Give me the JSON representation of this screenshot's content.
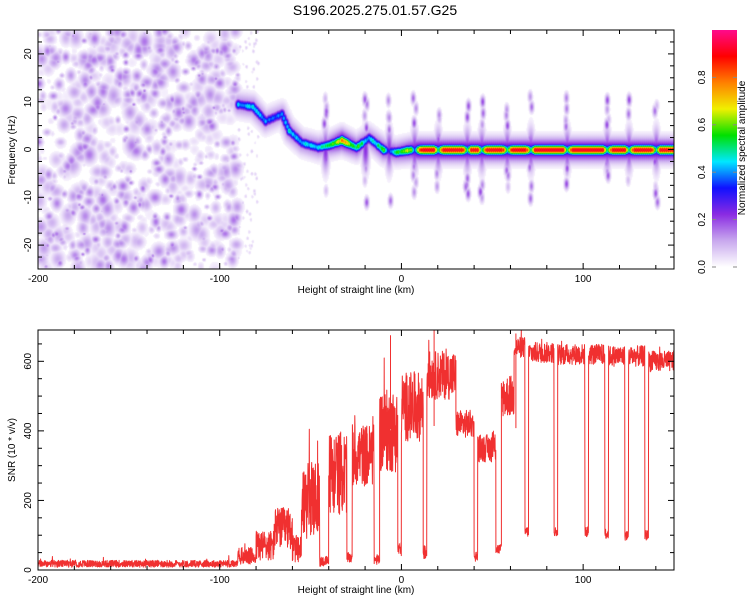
{
  "title": "S196.2025.275.01.57.G25",
  "chart_data": [
    {
      "type": "heatmap",
      "name": "spectrogram",
      "xlabel": "Height of straight line (km)",
      "ylabel": "Frequency (Hz)",
      "xlim": [
        -200,
        150
      ],
      "ylim": [
        -25,
        25
      ],
      "xticks": [
        -200,
        -100,
        0,
        100
      ],
      "xtick_labels": [
        "-200",
        "-100",
        "0",
        "100"
      ],
      "xminor_step": 20,
      "yticks": [
        -20,
        -10,
        0,
        10,
        20
      ],
      "ytick_labels": [
        "-20",
        "-10",
        "0",
        "10",
        "20"
      ],
      "yminor_step": 2.5,
      "colorbar": {
        "label": "Normalized spectral amplitude",
        "range": [
          0,
          1
        ],
        "ticks": [
          0.0,
          0.2,
          0.4,
          0.6,
          0.8
        ],
        "tick_labels": [
          "0.0",
          "0.2",
          "0.4",
          "0.6",
          "0.8"
        ],
        "colors": [
          "#ffffff",
          "#c8a8ee",
          "#8a2be2",
          "#1010ff",
          "#00e8ff",
          "#00e000",
          "#f0f000",
          "#ff8000",
          "#ff0000",
          "#ff0a8c"
        ]
      },
      "noise_region": {
        "x_range": [
          -200,
          -90
        ],
        "level_range": [
          0.02,
          0.16
        ]
      },
      "ridge": [
        {
          "x": -90,
          "f": 9.5,
          "a": 0.45
        },
        {
          "x": -82,
          "f": 9.0,
          "a": 0.48
        },
        {
          "x": -75,
          "f": 6.0,
          "a": 0.42
        },
        {
          "x": -66,
          "f": 7.5,
          "a": 0.4
        },
        {
          "x": -62,
          "f": 4.0,
          "a": 0.5
        },
        {
          "x": -55,
          "f": 1.5,
          "a": 0.46
        },
        {
          "x": -46,
          "f": 0.5,
          "a": 0.5
        },
        {
          "x": -40,
          "f": 1.0,
          "a": 0.55
        },
        {
          "x": -33,
          "f": 2.0,
          "a": 0.8
        },
        {
          "x": -25,
          "f": 0.5,
          "a": 0.6
        },
        {
          "x": -18,
          "f": 2.5,
          "a": 0.45
        },
        {
          "x": -10,
          "f": 0.0,
          "a": 0.6
        },
        {
          "x": -3,
          "f": -0.5,
          "a": 0.55
        },
        {
          "x": 5,
          "f": 0.0,
          "a": 0.7
        },
        {
          "x": 12,
          "f": 0.0,
          "a": 0.95
        },
        {
          "x": 150,
          "f": 0.0,
          "a": 0.95
        }
      ],
      "ridge_gaps_x": [
        -7,
        7,
        20,
        36,
        44,
        58,
        71,
        91,
        113,
        125,
        140
      ],
      "vertical_streaks_x": [
        -42,
        -20,
        -7,
        7,
        20,
        36,
        44,
        58,
        71,
        91,
        113,
        125,
        140
      ]
    },
    {
      "type": "line",
      "name": "snr",
      "xlabel": "Height of straight line (km)",
      "ylabel": "SNR (10 * v/v)",
      "xlim": [
        -200,
        150
      ],
      "ylim": [
        0,
        690
      ],
      "xticks": [
        -200,
        -100,
        0,
        100
      ],
      "xtick_labels": [
        "-200",
        "-100",
        "0",
        "100"
      ],
      "xminor_step": 20,
      "yticks": [
        0,
        200,
        400,
        600
      ],
      "ytick_labels": [
        "0",
        "200",
        "400",
        "600"
      ],
      "yminor_step": 50,
      "color": "#f03030",
      "segments": [
        {
          "x0": -200,
          "x1": -90,
          "level": 18,
          "noise": 10
        },
        {
          "x0": -90,
          "x1": -80,
          "level": 40,
          "noise": 25
        },
        {
          "x0": -80,
          "x1": -70,
          "level": 70,
          "noise": 45
        },
        {
          "x0": -70,
          "x1": -60,
          "level": 120,
          "noise": 60
        },
        {
          "x0": -60,
          "x1": -55,
          "level": 60,
          "noise": 40
        },
        {
          "x0": -55,
          "x1": -45,
          "level": 200,
          "noise": 110
        },
        {
          "x0": -45,
          "x1": -40,
          "level": 25,
          "noise": 15
        },
        {
          "x0": -40,
          "x1": -30,
          "level": 280,
          "noise": 120
        },
        {
          "x0": -30,
          "x1": -27,
          "level": 35,
          "noise": 15
        },
        {
          "x0": -27,
          "x1": -15,
          "level": 330,
          "noise": 90
        },
        {
          "x0": -15,
          "x1": -12,
          "level": 30,
          "noise": 15
        },
        {
          "x0": -12,
          "x1": -2,
          "level": 400,
          "noise": 120
        },
        {
          "x0": -2,
          "x1": 0,
          "level": 60,
          "noise": 20
        },
        {
          "x0": 0,
          "x1": 12,
          "level": 470,
          "noise": 100
        },
        {
          "x0": 12,
          "x1": 14,
          "level": 50,
          "noise": 20
        },
        {
          "x0": 14,
          "x1": 30,
          "level": 560,
          "noise": 70
        },
        {
          "x0": 30,
          "x1": 40,
          "level": 420,
          "noise": 40
        },
        {
          "x0": 40,
          "x1": 42,
          "level": 40,
          "noise": 15
        },
        {
          "x0": 42,
          "x1": 52,
          "level": 350,
          "noise": 40
        },
        {
          "x0": 52,
          "x1": 55,
          "level": 60,
          "noise": 15
        },
        {
          "x0": 55,
          "x1": 62,
          "level": 500,
          "noise": 60
        },
        {
          "x0": 62,
          "x1": 68,
          "level": 640,
          "noise": 30
        },
        {
          "x0": 68,
          "x1": 70,
          "level": 110,
          "noise": 15
        },
        {
          "x0": 70,
          "x1": 84,
          "level": 625,
          "noise": 30
        },
        {
          "x0": 84,
          "x1": 86,
          "level": 110,
          "noise": 15
        },
        {
          "x0": 86,
          "x1": 101,
          "level": 620,
          "noise": 30
        },
        {
          "x0": 101,
          "x1": 103,
          "level": 110,
          "noise": 15
        },
        {
          "x0": 103,
          "x1": 112,
          "level": 620,
          "noise": 30
        },
        {
          "x0": 112,
          "x1": 114,
          "level": 105,
          "noise": 15
        },
        {
          "x0": 114,
          "x1": 123,
          "level": 615,
          "noise": 30
        },
        {
          "x0": 123,
          "x1": 125,
          "level": 100,
          "noise": 15
        },
        {
          "x0": 125,
          "x1": 134,
          "level": 615,
          "noise": 30
        },
        {
          "x0": 134,
          "x1": 136,
          "level": 100,
          "noise": 15
        },
        {
          "x0": 136,
          "x1": 150,
          "level": 600,
          "noise": 30
        }
      ],
      "peaks": [
        {
          "x": -6,
          "y": 675
        },
        {
          "x": 18,
          "y": 690
        },
        {
          "x": 63,
          "y": 680
        }
      ]
    }
  ]
}
